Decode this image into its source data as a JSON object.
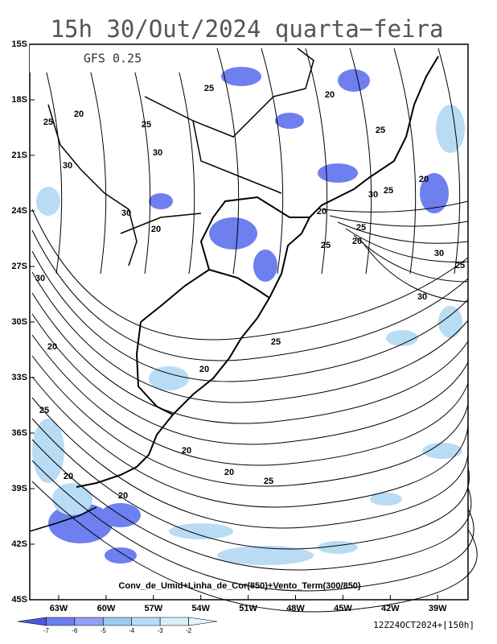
{
  "header": {
    "title": "15h 30/Out/2024 quarta−feira",
    "model": "GFS 0.25"
  },
  "map": {
    "lat_labels": [
      "15S",
      "18S",
      "21S",
      "24S",
      "27S",
      "30S",
      "33S",
      "36S",
      "39S",
      "42S",
      "45S"
    ],
    "lon_labels": [
      "63W",
      "60W",
      "57W",
      "54W",
      "51W",
      "48W",
      "45W",
      "42W",
      "39W"
    ],
    "contour_labels": [
      "25",
      "20",
      "25",
      "20",
      "25",
      "30",
      "25",
      "30",
      "20",
      "30",
      "25",
      "20",
      "30",
      "25",
      "20",
      "20",
      "25",
      "30",
      "25",
      "30",
      "30",
      "25",
      "20",
      "20",
      "25",
      "20",
      "20",
      "20",
      "25",
      "20"
    ],
    "caption": "Conv_de_Umid+Linha_de_Cor(850)+Vento_Term(300/850)"
  },
  "colorbar": {
    "labels": [
      -7,
      -6,
      -5,
      -4,
      -3,
      -2
    ]
  },
  "footer": {
    "run": "12Z24OCT2024+[150h]"
  }
}
